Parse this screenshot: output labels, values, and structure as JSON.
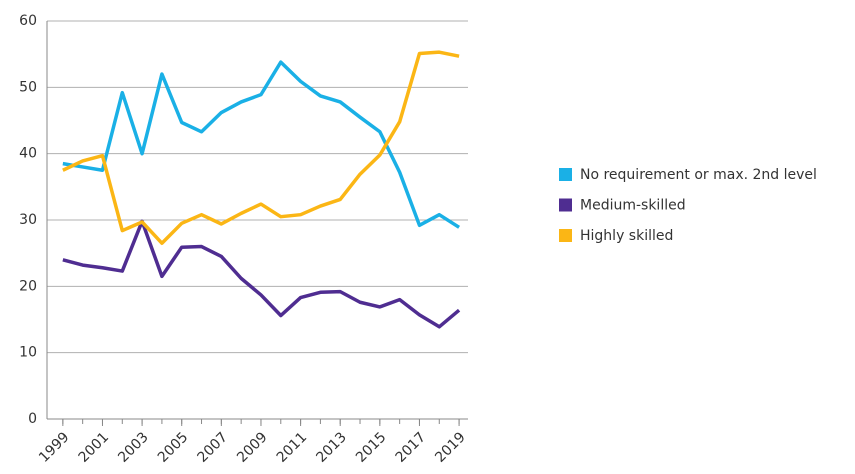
{
  "chart_data": {
    "type": "line",
    "x": [
      1999,
      2000,
      2001,
      2002,
      2003,
      2004,
      2005,
      2006,
      2007,
      2008,
      2009,
      2010,
      2011,
      2012,
      2013,
      2014,
      2015,
      2016,
      2017,
      2018,
      2019
    ],
    "series": [
      {
        "name": "No requirement or max. 2nd level",
        "color": "#1ab0e6",
        "values": [
          38.5,
          38,
          37.5,
          49.2,
          40,
          52,
          44.7,
          43.3,
          46.2,
          47.8,
          48.9,
          53.8,
          50.9,
          48.7,
          47.8,
          45.5,
          43.3,
          37.2,
          29.2,
          30.8,
          28.9
        ]
      },
      {
        "name": "Medium-skilled",
        "color": "#4f2d91",
        "values": [
          24,
          23.2,
          22.8,
          22.3,
          29.8,
          21.5,
          25.9,
          26,
          24.5,
          21.2,
          18.7,
          15.6,
          18.3,
          19.1,
          19.2,
          17.6,
          16.9,
          18,
          15.7,
          13.9,
          16.4
        ]
      },
      {
        "name": "Highly skilled",
        "color": "#fbb615",
        "values": [
          37.5,
          38.9,
          39.7,
          28.4,
          29.7,
          26.5,
          29.5,
          30.8,
          29.4,
          31,
          32.4,
          30.5,
          30.8,
          32.1,
          33.1,
          36.9,
          39.8,
          44.8,
          55.1,
          55.3,
          54.7
        ]
      }
    ],
    "xlim": [
      1998.2,
      2019.45
    ],
    "xticks": [
      1999,
      2001,
      2003,
      2005,
      2007,
      2009,
      2011,
      2013,
      2015,
      2017,
      2019
    ],
    "ylim": [
      0,
      60
    ],
    "yticks": [
      0,
      10,
      20,
      30,
      40,
      50,
      60
    ],
    "grid": true,
    "legend": "right"
  }
}
